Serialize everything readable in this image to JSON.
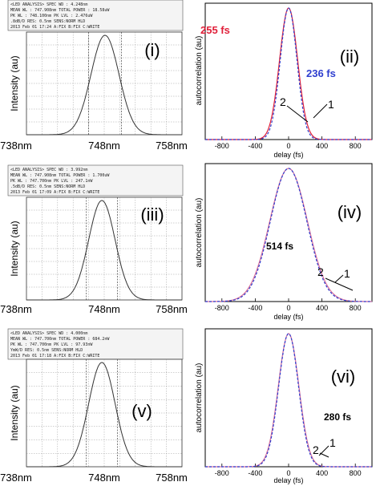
{
  "colors": {
    "red": "#e0203a",
    "blue": "#2f3fcf",
    "pink": "#d9709c",
    "osa": "#333333"
  },
  "chart_data": [
    {
      "type": "line",
      "id": "i",
      "panel_label": "(i)",
      "ylabel": "Intensity (au)",
      "xticks": [
        "738nm",
        "748nm",
        "758nm"
      ],
      "header": [
        "<LED ANALYSIS>   SPEC WD :  4.248nm",
        "MEAN WL : 747.908nm  TOTAL POWER : 18.58uW",
        "PK WL : 748.100nm   PK LVL :  2.476uW",
        ".8dB/D   RES: 0.5nm  SENS:NORM HLD",
        "2013 Feb 01 17:24   A:FIX  B:FIX  C:WRITE"
      ],
      "x": [
        738,
        758
      ],
      "center": 748.1,
      "spec_wd": 4.248
    },
    {
      "type": "line",
      "id": "ii",
      "panel_label": "(ii)",
      "xlabel": "delay (fs)",
      "ylabel": "autocorrelation (au)",
      "xlim": [
        -1000,
        1000
      ],
      "xticks": [
        "-800",
        "-400",
        "0",
        "400",
        "800"
      ],
      "series": [
        {
          "name": "1",
          "color": "#e0203a",
          "fwhm_fs": 255
        },
        {
          "name": "2",
          "color": "#2f3fcf",
          "fwhm_fs": 236
        }
      ],
      "annotations": [
        "255 fs",
        "236 fs"
      ]
    },
    {
      "type": "line",
      "id": "iii",
      "panel_label": "(iii)",
      "ylabel": "Intensity (au)",
      "xticks": [
        "738nm",
        "748nm",
        "758nm"
      ],
      "header": [
        "<LED ANALYSIS>   SPEC WD :  3.992nm",
        "MEAN WL : 747.908nm  TOTAL POWER : 1.700uW",
        "PK WL : 747.700nm   PK LVL : 247.1nW",
        ".5dB/D   RES: 0.5nm  SENS:NORM HLD",
        "2013 Feb 01 17:09   A:FIX  B:FIX  C:WRITE"
      ],
      "x": [
        738,
        758
      ],
      "center": 747.7,
      "spec_wd": 3.992
    },
    {
      "type": "line",
      "id": "iv",
      "panel_label": "(iv)",
      "xlabel": "delay (fs)",
      "ylabel": "autocorrelation (au)",
      "xlim": [
        -1000,
        1000
      ],
      "xticks": [
        "-800",
        "-400",
        "0",
        "400",
        "800"
      ],
      "series": [
        {
          "name": "1",
          "color": "#d9709c",
          "fwhm_fs": 530
        },
        {
          "name": "2",
          "color": "#2f3fcf",
          "fwhm_fs": 514
        }
      ],
      "annotations": [
        "514 fs"
      ]
    },
    {
      "type": "line",
      "id": "v",
      "panel_label": "(v)",
      "ylabel": "Intensity (au)",
      "xticks": [
        "738nm",
        "748nm",
        "758nm"
      ],
      "header": [
        "<LED ANALYSIS>   SPEC WD :  4.000nm",
        "MEAN WL : 747.700nm  TOTAL POWER : 684.2nW",
        "PK WL : 747.700nm   PK LVL : 97.93nW",
        "YmW/D   RES: 0.5nm  SENS:NORM HLD",
        "2013 Feb 01 17:18   A:FIX  B:FIX  C:WRITE"
      ],
      "x": [
        738,
        758
      ],
      "center": 747.7,
      "spec_wd": 4.0
    },
    {
      "type": "line",
      "id": "vi",
      "panel_label": "(vi)",
      "xlabel": "delay (fs)",
      "ylabel": "autocorrelation (au)",
      "xlim": [
        -1000,
        1000
      ],
      "xticks": [
        "-800",
        "-400",
        "0",
        "400",
        "800"
      ],
      "series": [
        {
          "name": "1",
          "color": "#d9709c",
          "fwhm_fs": 290
        },
        {
          "name": "2",
          "color": "#2f3fcf",
          "fwhm_fs": 280
        }
      ],
      "annotations": [
        "280 fs"
      ]
    }
  ]
}
